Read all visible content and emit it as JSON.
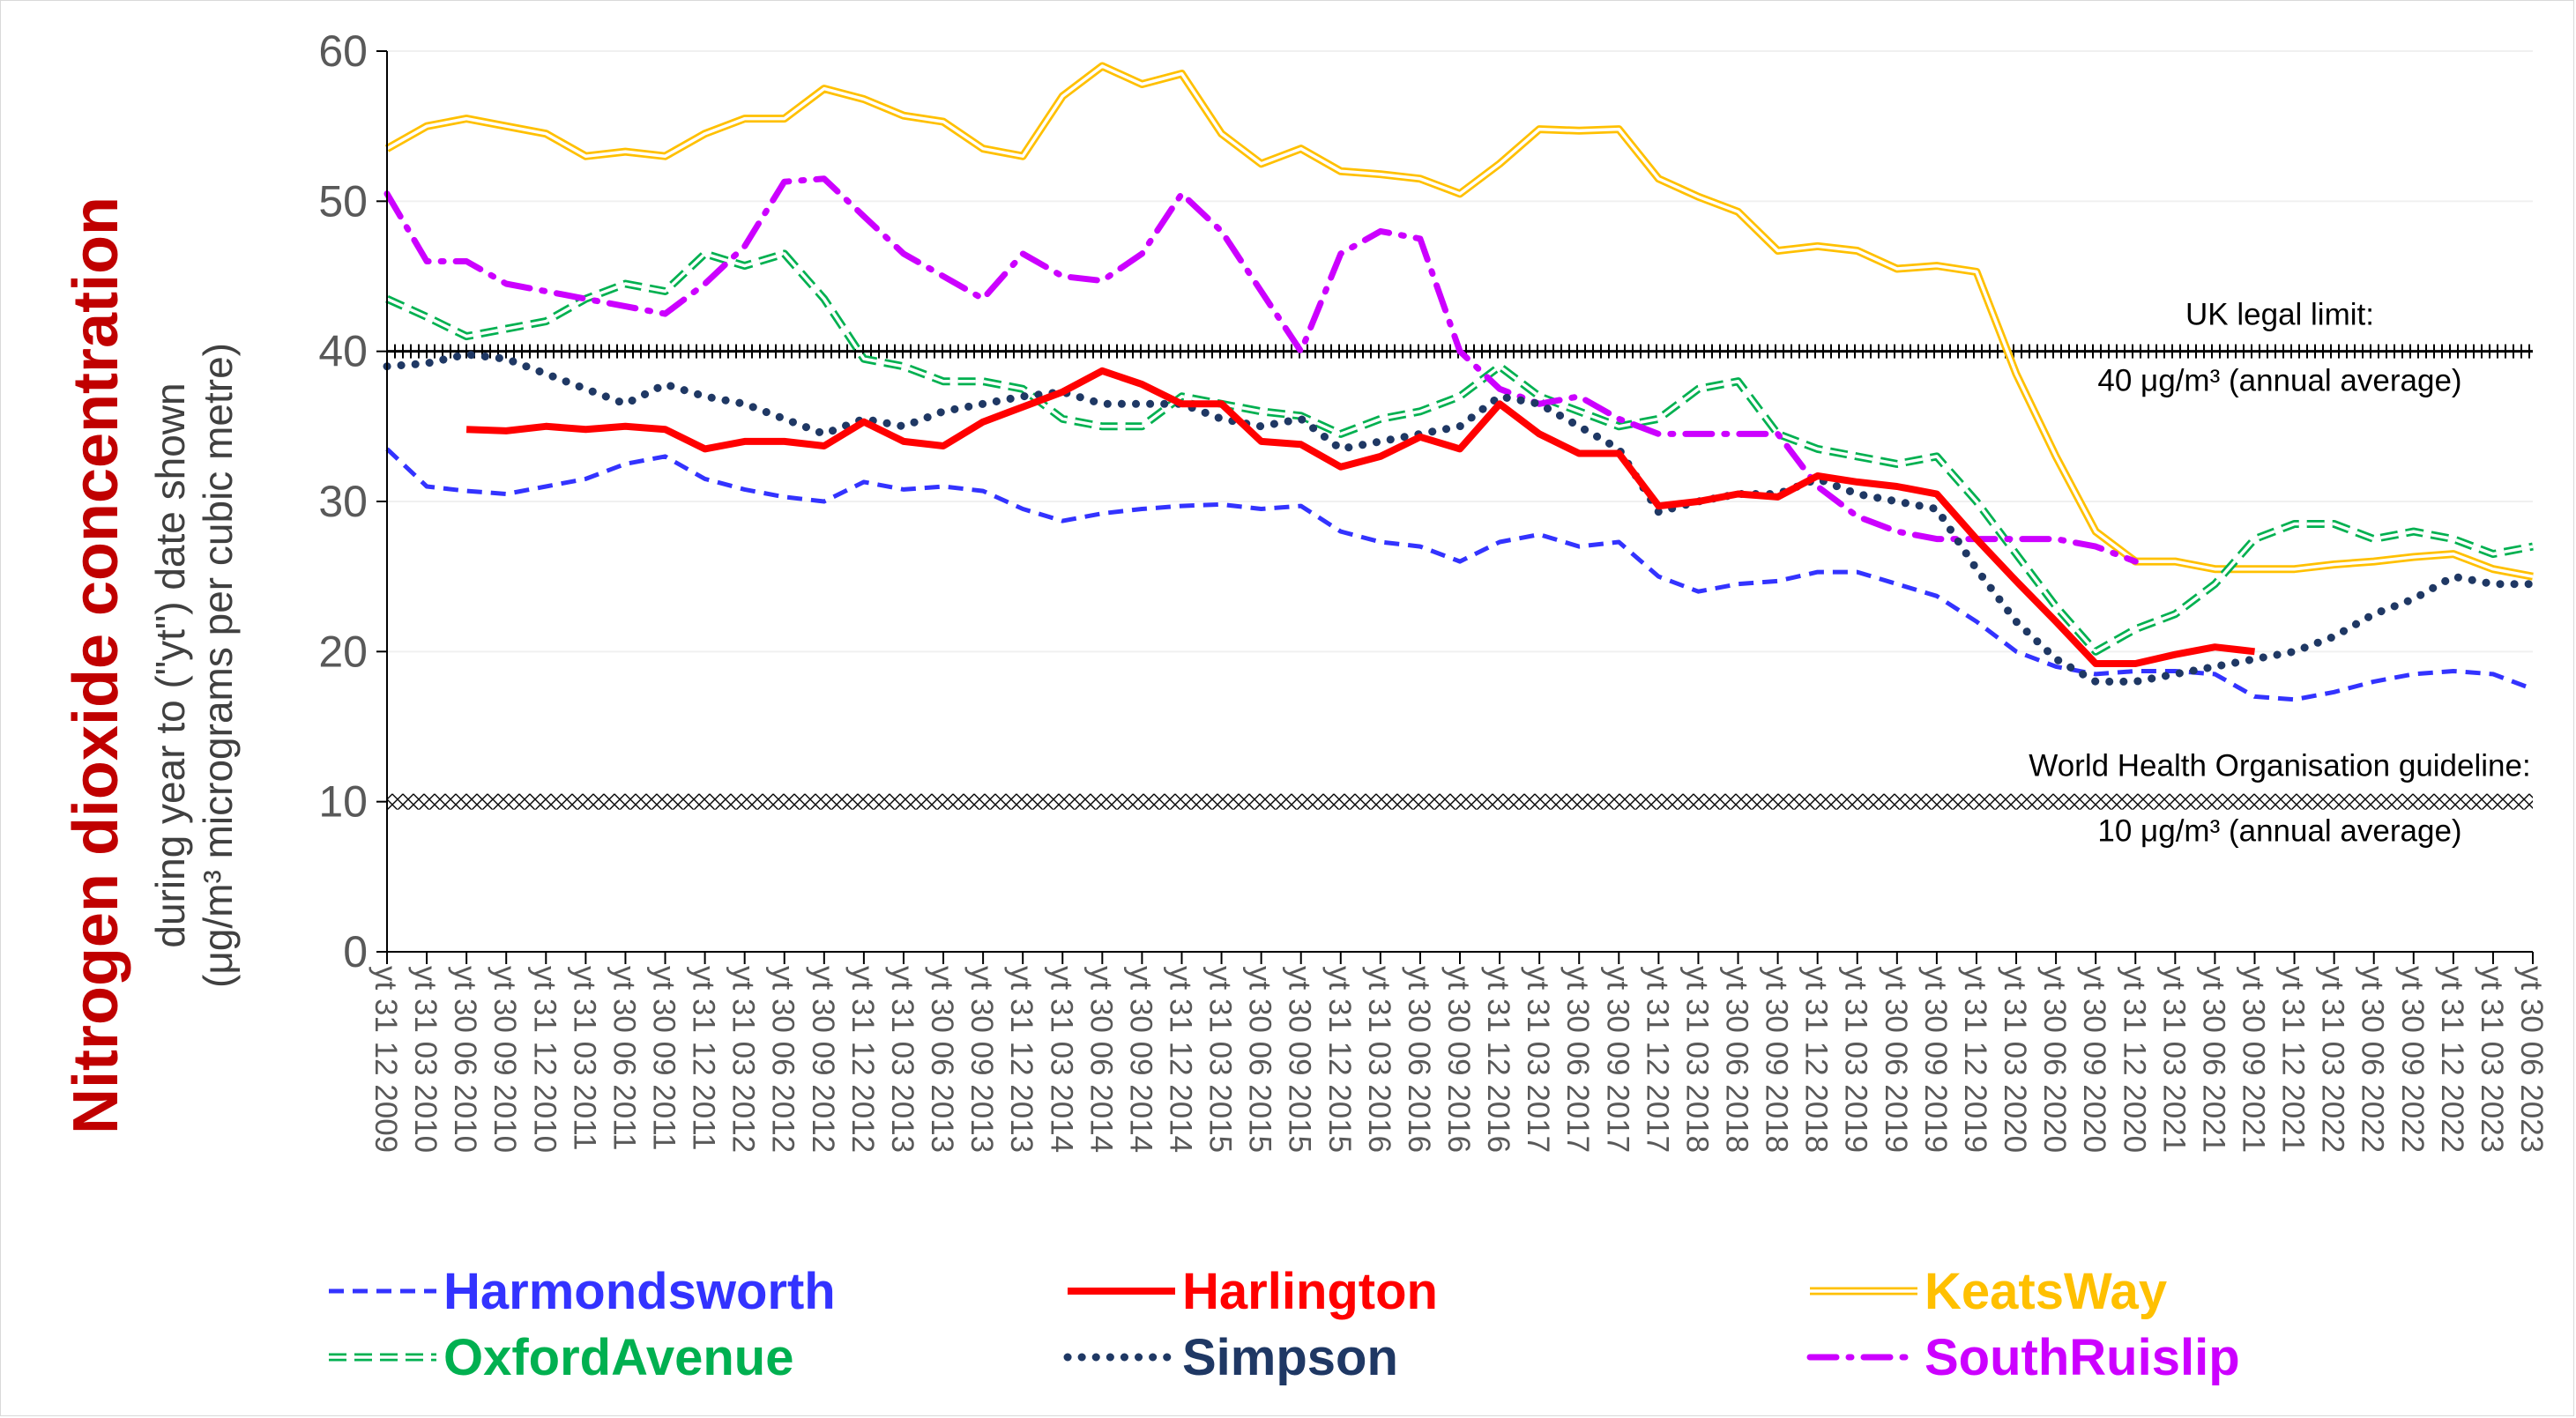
{
  "chart_data": {
    "type": "line",
    "ylabel": "Nitrogen dioxide concentration",
    "ylabel_sub_1": "during year to (\"yt\") date shown",
    "ylabel_sub_2": "(μg/m³ micrograms per cubic metre)",
    "ylim": [
      0,
      60
    ],
    "yticks": [
      0,
      10,
      20,
      30,
      40,
      50,
      60
    ],
    "grid": true,
    "legend_position": "bottom",
    "categories": [
      "yt 31 12 2009",
      "yt 31 03 2010",
      "yt 30 06 2010",
      "yt 30 09 2010",
      "yt 31 12 2010",
      "yt 31 03 2011",
      "yt 30 06 2011",
      "yt 30 09 2011",
      "yt 31 12 2011",
      "yt 31 03 2012",
      "yt 30 06 2012",
      "yt 30 09 2012",
      "yt 31 12 2012",
      "yt 31 03 2013",
      "yt 30 06 2013",
      "yt 30 09 2013",
      "yt 31 12 2013",
      "yt 31 03 2014",
      "yt 30 06 2014",
      "yt 30 09 2014",
      "yt 31 12 2014",
      "yt 31 03 2015",
      "yt 30 06 2015",
      "yt 30 09 2015",
      "yt 31 12 2015",
      "yt 31 03 2016",
      "yt 30 06 2016",
      "yt 30 09 2016",
      "yt 31 12 2016",
      "yt 31 03 2017",
      "yt 30 06 2017",
      "yt 30 09 2017",
      "yt 31 12 2017",
      "yt 31 03 2018",
      "yt 30 06 2018",
      "yt 30 09 2018",
      "yt 31 12 2018",
      "yt 31 03 2019",
      "yt 30 06 2019",
      "yt 30 09 2019",
      "yt 31 12 2019",
      "yt 31 03 2020",
      "yt 30 06 2020",
      "yt 30 09 2020",
      "yt 31 12 2020",
      "yt 31 03 2021",
      "yt 30 06 2021",
      "yt 30 09 2021",
      "yt 31 12 2021",
      "yt 31 03 2022",
      "yt 30 06 2022",
      "yt 30 09 2022",
      "yt 31 12 2022",
      "yt 31 03 2023",
      "yt 30 06 2023"
    ],
    "series": [
      {
        "name": "Harmondsworth",
        "color": "#3333ff",
        "style": "dash",
        "values": [
          33.5,
          31.0,
          30.7,
          30.5,
          31.0,
          31.5,
          32.5,
          33.0,
          31.5,
          30.8,
          30.3,
          30.0,
          31.3,
          30.8,
          31.0,
          30.7,
          29.5,
          28.7,
          29.2,
          29.5,
          29.7,
          29.8,
          29.5,
          29.7,
          28.0,
          27.3,
          27.0,
          26.0,
          27.3,
          27.8,
          27.0,
          27.3,
          25.0,
          24.0,
          24.5,
          24.7,
          25.3,
          25.3,
          24.5,
          23.7,
          22.0,
          20.0,
          19.0,
          18.5,
          18.7,
          18.7,
          18.5,
          17.0,
          16.8,
          17.3,
          18.0,
          18.5,
          18.7,
          18.5,
          17.5
        ]
      },
      {
        "name": "Harlington",
        "color": "#ff0000",
        "style": "solid",
        "start_index": 2,
        "values": [
          null,
          null,
          34.8,
          34.7,
          35.0,
          34.8,
          35.0,
          34.8,
          33.5,
          34.0,
          34.0,
          33.7,
          35.3,
          34.0,
          33.7,
          35.3,
          36.3,
          37.3,
          38.7,
          37.8,
          36.5,
          36.5,
          34.0,
          33.8,
          32.3,
          33.0,
          34.3,
          33.5,
          36.5,
          34.5,
          33.2,
          33.2,
          29.7,
          30.0,
          30.5,
          30.3,
          31.7,
          31.3,
          31.0,
          30.5,
          27.5,
          24.7,
          22.0,
          19.2,
          19.2,
          19.8,
          20.3,
          20.0,
          null,
          null,
          null,
          null,
          null,
          null,
          null
        ]
      },
      {
        "name": "KeatsWay",
        "color": "#ffc000",
        "style": "double",
        "values": [
          53.5,
          55.0,
          55.5,
          55.0,
          54.5,
          53.0,
          53.3,
          53.0,
          54.5,
          55.5,
          55.5,
          57.5,
          56.8,
          55.7,
          55.3,
          53.5,
          53.0,
          57.0,
          59.0,
          57.8,
          58.5,
          54.5,
          52.5,
          53.5,
          52.0,
          51.8,
          51.5,
          50.5,
          52.5,
          54.8,
          54.7,
          54.8,
          51.5,
          50.3,
          49.3,
          46.7,
          47.0,
          46.7,
          45.5,
          45.7,
          45.3,
          38.5,
          33.0,
          28.0,
          26.0,
          26.0,
          25.5,
          25.5,
          25.5,
          25.8,
          26.0,
          26.3,
          26.5,
          25.5,
          25.0
        ]
      },
      {
        "name": "OxfordAvenue",
        "color": "#00b050",
        "style": "longdash",
        "values": [
          43.5,
          42.3,
          41.0,
          41.5,
          42.0,
          43.5,
          44.5,
          44.0,
          46.5,
          45.7,
          46.5,
          43.5,
          39.5,
          39.0,
          38.0,
          38.0,
          37.5,
          35.5,
          35.0,
          35.0,
          37.0,
          36.5,
          36.0,
          35.7,
          34.5,
          35.5,
          36.0,
          37.0,
          39.0,
          37.0,
          36.0,
          35.0,
          35.5,
          37.5,
          38.0,
          34.5,
          33.5,
          33.0,
          32.5,
          33.0,
          30.0,
          26.5,
          23.0,
          20.0,
          21.5,
          22.5,
          24.5,
          27.5,
          28.5,
          28.5,
          27.5,
          28.0,
          27.5,
          26.5,
          27.0
        ]
      },
      {
        "name": "Simpson",
        "color": "#1f3864",
        "style": "dot",
        "values": [
          39.0,
          39.2,
          39.8,
          39.5,
          38.5,
          37.5,
          36.5,
          37.8,
          37.0,
          36.5,
          35.5,
          34.5,
          35.5,
          35.0,
          36.0,
          36.5,
          37.0,
          37.3,
          36.5,
          36.5,
          36.5,
          35.5,
          35.0,
          35.5,
          33.5,
          34.0,
          34.5,
          35.0,
          37.0,
          36.5,
          35.0,
          33.5,
          29.3,
          30.0,
          30.5,
          30.5,
          31.5,
          30.5,
          30.0,
          29.5,
          25.5,
          22.0,
          19.5,
          18.0,
          18.0,
          18.5,
          19.0,
          19.5,
          20.0,
          21.0,
          22.5,
          23.5,
          25.0,
          24.5,
          24.5
        ]
      },
      {
        "name": "SouthRuislip",
        "color": "#cc00ff",
        "style": "dashdot",
        "values": [
          50.5,
          46.0,
          46.0,
          44.5,
          44.0,
          43.5,
          43.0,
          42.5,
          44.5,
          47.0,
          51.3,
          51.5,
          49.0,
          46.5,
          45.0,
          43.5,
          46.5,
          45.0,
          44.7,
          46.5,
          50.5,
          48.0,
          44.0,
          40.0,
          46.5,
          48.0,
          47.5,
          40.0,
          37.5,
          36.5,
          37.0,
          35.5,
          34.5,
          34.5,
          34.5,
          34.5,
          31.0,
          29.0,
          28.0,
          27.5,
          27.5,
          27.5,
          27.5,
          27.0,
          26.0,
          null,
          null,
          null,
          null,
          null,
          null,
          null,
          null,
          null,
          null
        ]
      }
    ],
    "reference_lines": [
      {
        "value": 40,
        "label_1": "UK legal limit:",
        "label_2": "40 μg/m³ (annual average)"
      },
      {
        "value": 10,
        "label_1": "World Health Organisation guideline:",
        "label_2": "10 μg/m³ (annual average)"
      }
    ]
  }
}
